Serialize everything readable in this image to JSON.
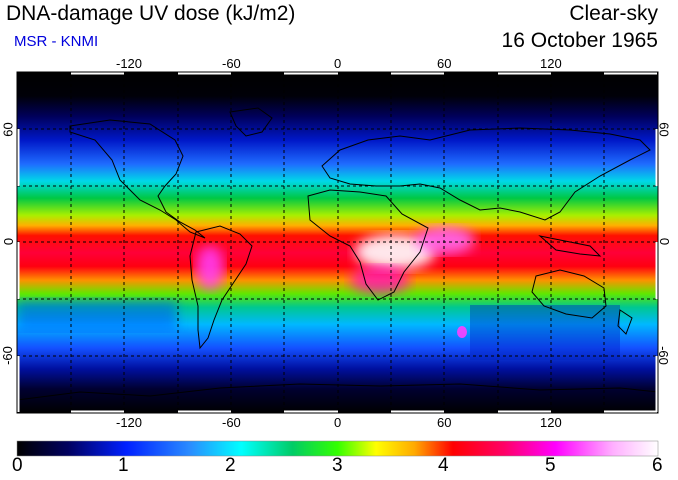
{
  "header": {
    "title": "DNA-damage UV dose (kJ/m2)",
    "subtitle": "MSR - KNMI",
    "mode": "Clear-sky",
    "date": "16 October 1965"
  },
  "map": {
    "lon_ticks": [
      "-120",
      "-60",
      "0",
      "60",
      "120"
    ],
    "lat_ticks": [
      "60",
      "0",
      "-60"
    ],
    "gridlines": "dashed every 30 degrees",
    "coastline_color": "#000000"
  },
  "colorbar": {
    "min": 0,
    "max": 6,
    "tick_labels": [
      "0",
      "1",
      "2",
      "3",
      "4",
      "5",
      "6"
    ],
    "colors": [
      "#000000",
      "#0000cc",
      "#3366ff",
      "#00ffff",
      "#00cc66",
      "#33ff00",
      "#ffff00",
      "#ffaa00",
      "#ff0000",
      "#ff0066",
      "#ff00ff",
      "#ffccff",
      "#ffffff"
    ]
  }
}
